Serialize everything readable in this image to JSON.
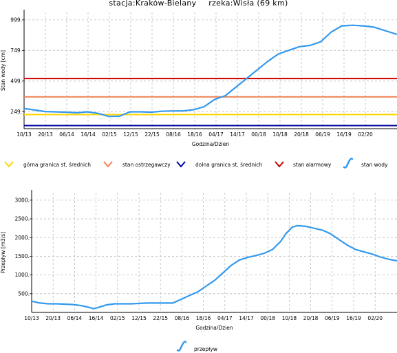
{
  "header": {
    "station": "stacja:Kraków-Bielany",
    "river": "rzeka:Wisła (69 km)"
  },
  "chart_data": [
    {
      "type": "line",
      "title": "",
      "xlabel": "Godzina/Dzien",
      "ylabel": "Stan wody [cm]",
      "x_tick_labels": [
        "10/13",
        "20/13",
        "06/14",
        "16/14",
        "02/15",
        "12/15",
        "22/15",
        "08/16",
        "18/16",
        "04/17",
        "14/17",
        "00/18",
        "10/18",
        "20/18",
        "06/19",
        "16/19",
        "02/20"
      ],
      "y_ticks": [
        249,
        499,
        749,
        999
      ],
      "y_tick_labels": [
        "249.",
        "499.",
        "749.",
        "999."
      ],
      "ylim": [
        110,
        1060
      ],
      "grid": true,
      "legend_position": "bottom",
      "series": [
        {
          "name": "górna granica st. średnich",
          "type": "constant",
          "value": 225,
          "color": "#ffd700"
        },
        {
          "name": "stan ostrzegawczy",
          "type": "constant",
          "value": 370,
          "color": "#f08050"
        },
        {
          "name": "dolna granica st. średnich",
          "type": "constant",
          "value": 135,
          "color": "#0000a0"
        },
        {
          "name": "stan alarmowy",
          "type": "constant",
          "value": 520,
          "color": "#cc0000"
        },
        {
          "name": "stan wody",
          "color": "#3399ee",
          "x": [
            0,
            1,
            2,
            2.5,
            3,
            3.5,
            4,
            4.5,
            5,
            5.5,
            6,
            6.5,
            7,
            7.5,
            8,
            8.5,
            9,
            9.5,
            10,
            10.5,
            11,
            11.5,
            12,
            12.5,
            13,
            13.5,
            14,
            14.5,
            15,
            15.5,
            16,
            16.5,
            17.6
          ],
          "y": [
            275,
            250,
            245,
            240,
            248,
            235,
            210,
            212,
            248,
            248,
            245,
            252,
            255,
            255,
            265,
            290,
            350,
            380,
            450,
            520,
            590,
            660,
            720,
            750,
            780,
            790,
            820,
            900,
            950,
            955,
            950,
            940,
            880
          ]
        }
      ]
    },
    {
      "type": "line",
      "title": "",
      "xlabel": "Godzina/Dzien",
      "ylabel": "Przepływ [m3/s]",
      "x_tick_labels": [
        "10/13",
        "20/13",
        "06/14",
        "16/14",
        "02/15",
        "12/15",
        "22/15",
        "08/16",
        "18/16",
        "04/17",
        "14/17",
        "00/18",
        "10/18",
        "20/18",
        "06/19",
        "16/19",
        "02/20"
      ],
      "y_ticks": [
        500,
        1000,
        1500,
        2000,
        2500,
        3000
      ],
      "y_tick_labels": [
        "500.",
        "1000.",
        "1500.",
        "2000.",
        "2500.",
        "3000."
      ],
      "ylim": [
        0,
        3200
      ],
      "grid": true,
      "legend_position": "bottom",
      "series": [
        {
          "name": "przepływ",
          "color": "#3399ee",
          "x": [
            0,
            0.5,
            1,
            1.5,
            2,
            2.5,
            3,
            3.5,
            3.7,
            4,
            4.5,
            5,
            5.5,
            6,
            6.5,
            7,
            7.5,
            8,
            8.5,
            9,
            9.5,
            10,
            10.5,
            11,
            11.5,
            12,
            12.5,
            13,
            13.5,
            14,
            14.5,
            15,
            15.3,
            15.7,
            16,
            16.5,
            17,
            17.5,
            18,
            18.5,
            19,
            19.5,
            20,
            20.5,
            21,
            21.5,
            22
          ],
          "y": [
            300,
            250,
            230,
            230,
            220,
            210,
            180,
            130,
            100,
            130,
            200,
            230,
            230,
            230,
            240,
            250,
            250,
            250,
            250,
            350,
            450,
            550,
            700,
            850,
            1050,
            1250,
            1400,
            1470,
            1520,
            1580,
            1680,
            1900,
            2100,
            2280,
            2320,
            2300,
            2250,
            2200,
            2100,
            1950,
            1800,
            1680,
            1620,
            1560,
            1480,
            1420,
            1380
          ]
        }
      ]
    }
  ]
}
